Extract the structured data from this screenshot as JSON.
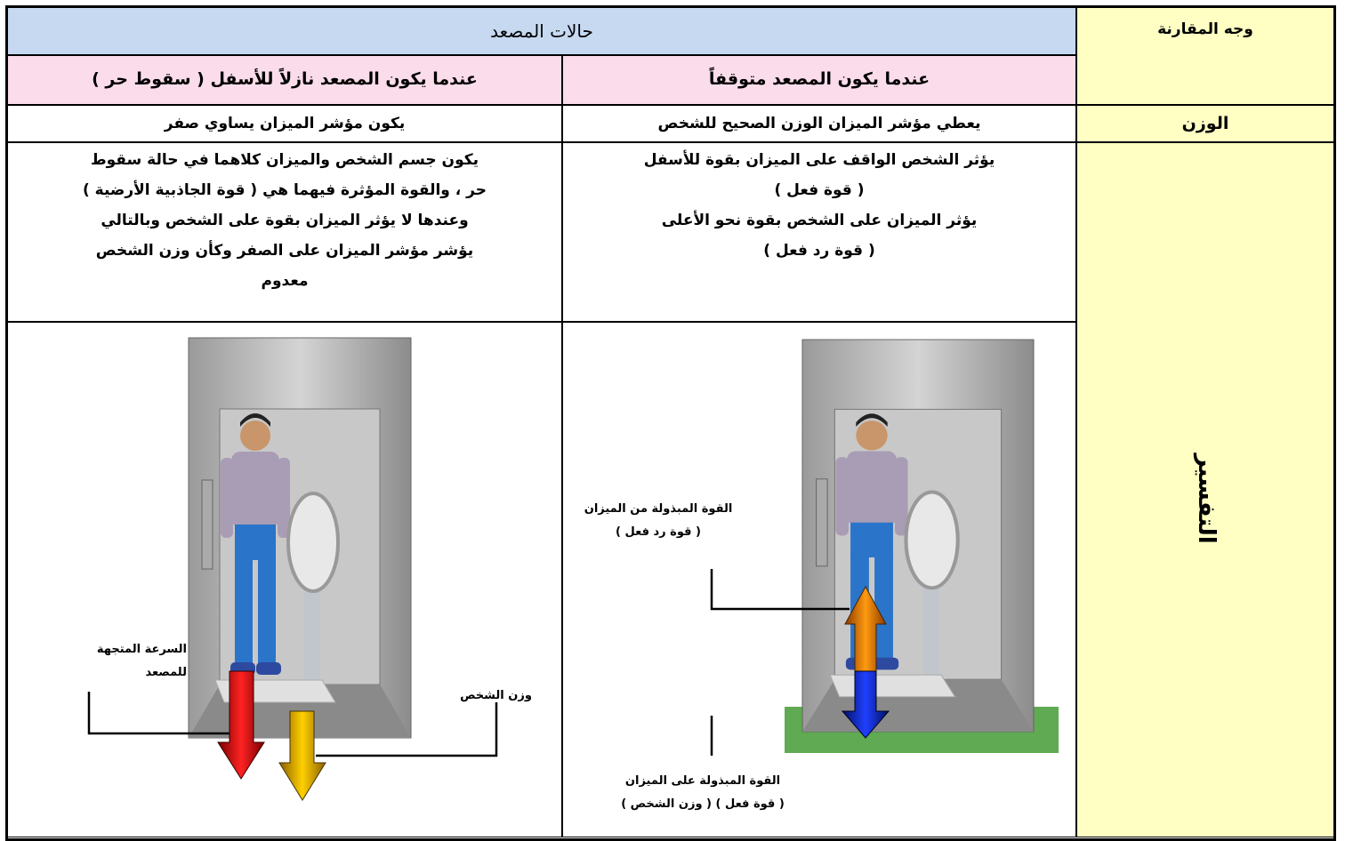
{
  "table": {
    "corner": "وجه المقارنة",
    "group_header": "حالات المصعد",
    "columns": [
      "عندما يكون المصعد متوقفاً",
      "عندما يكون المصعد نازلاً للأسفل ( سقوط حر )"
    ],
    "rows": [
      {
        "label": "الوزن",
        "cells": [
          [
            "يعطي مؤشر الميزان الوزن الصحيح للشخص"
          ],
          [
            "يكون مؤشر الميزان يساوي صفر"
          ]
        ]
      },
      {
        "label": "التفسير",
        "cells": [
          [
            "يؤثر الشخص الواقف على الميزان بقوة للأسفل",
            "( قوة فعل )",
            "يؤثر الميزان على الشخص بقوة نحو الأعلى",
            "( قوة رد فعل )"
          ],
          [
            "يكون جسم الشخص والميزان كلاهما في حالة سقوط",
            "حر ، والقوة المؤثرة فيهما هي ( قوة الجاذبية الأرضية )",
            "وعندها لا يؤثر الميزان بقوة على الشخص وبالتالي",
            "يؤشر مؤشر الميزان على الصفر وكأن وزن الشخص",
            "معدوم"
          ]
        ]
      }
    ]
  },
  "figures": {
    "stopped": {
      "up_label": [
        "القوة المبذولة من الميزان",
        "( قوة رد فعل )"
      ],
      "down_label": [
        "القوة المبذولة على الميزان",
        "( قوة فعل ) ( وزن الشخص )"
      ]
    },
    "falling": {
      "velocity_label": [
        "السرعة المتجهة",
        "للمصعد"
      ],
      "weight_label": [
        "وزن الشخص"
      ]
    }
  }
}
